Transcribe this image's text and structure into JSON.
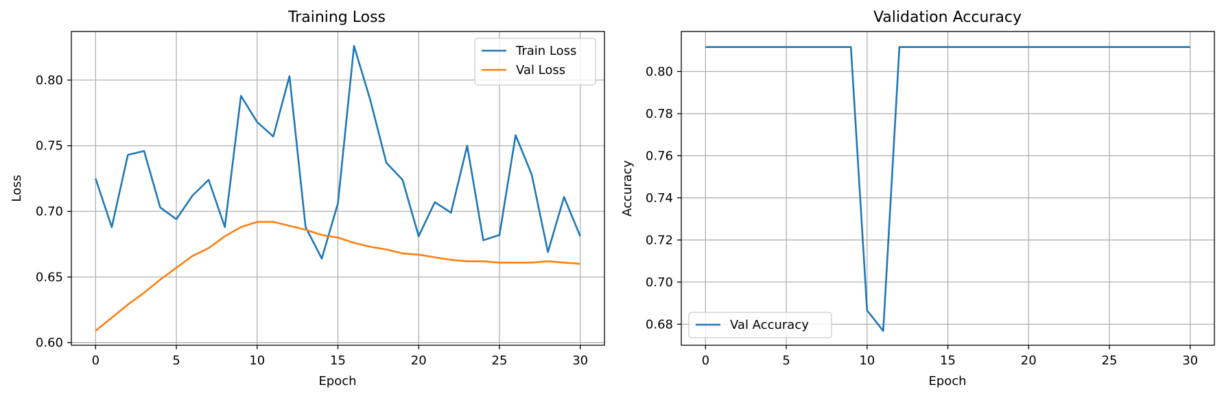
{
  "colors": {
    "blue": "#1f77b4",
    "orange": "#ff7f0e"
  },
  "chart_data": [
    {
      "type": "line",
      "title": "Training Loss",
      "xlabel": "Epoch",
      "ylabel": "Loss",
      "xlim": [
        -1.5,
        31.5
      ],
      "ylim": [
        0.598,
        0.837
      ],
      "xticks": [
        0,
        5,
        10,
        15,
        20,
        25,
        30
      ],
      "yticks": [
        0.6,
        0.65,
        0.7,
        0.75,
        0.8
      ],
      "xtick_labels": [
        "0",
        "5",
        "10",
        "15",
        "20",
        "25",
        "30"
      ],
      "ytick_labels": [
        "0.60",
        "0.65",
        "0.70",
        "0.75",
        "0.80"
      ],
      "grid": true,
      "legend_position": "upper-right",
      "x": [
        0,
        1,
        2,
        3,
        4,
        5,
        6,
        7,
        8,
        9,
        10,
        11,
        12,
        13,
        14,
        15,
        16,
        17,
        18,
        19,
        20,
        21,
        22,
        23,
        24,
        25,
        26,
        27,
        28,
        29,
        30
      ],
      "series": [
        {
          "name": "Train Loss",
          "color": "#1f77b4",
          "values": [
            0.725,
            0.688,
            0.743,
            0.746,
            0.703,
            0.694,
            0.712,
            0.724,
            0.688,
            0.788,
            0.768,
            0.757,
            0.803,
            0.688,
            0.664,
            0.706,
            0.826,
            0.785,
            0.737,
            0.724,
            0.681,
            0.707,
            0.699,
            0.75,
            0.678,
            0.682,
            0.758,
            0.728,
            0.669,
            0.711,
            0.681
          ]
        },
        {
          "name": "Val Loss",
          "color": "#ff7f0e",
          "values": [
            0.609,
            0.619,
            0.629,
            0.638,
            0.648,
            0.657,
            0.666,
            0.672,
            0.681,
            0.688,
            0.692,
            0.692,
            0.689,
            0.686,
            0.682,
            0.68,
            0.676,
            0.673,
            0.671,
            0.668,
            0.667,
            0.665,
            0.663,
            0.662,
            0.662,
            0.661,
            0.661,
            0.661,
            0.662,
            0.661,
            0.66
          ]
        }
      ]
    },
    {
      "type": "line",
      "title": "Validation Accuracy",
      "xlabel": "Epoch",
      "ylabel": "Accuracy",
      "xlim": [
        -1.5,
        31.5
      ],
      "ylim": [
        0.67,
        0.819
      ],
      "xticks": [
        0,
        5,
        10,
        15,
        20,
        25,
        30
      ],
      "yticks": [
        0.68,
        0.7,
        0.72,
        0.74,
        0.76,
        0.78,
        0.8
      ],
      "xtick_labels": [
        "0",
        "5",
        "10",
        "15",
        "20",
        "25",
        "30"
      ],
      "ytick_labels": [
        "0.68",
        "0.70",
        "0.72",
        "0.74",
        "0.76",
        "0.78",
        "0.80"
      ],
      "grid": true,
      "legend_position": "lower-left",
      "x": [
        0,
        1,
        2,
        3,
        4,
        5,
        6,
        7,
        8,
        9,
        10,
        11,
        12,
        13,
        14,
        15,
        16,
        17,
        18,
        19,
        20,
        21,
        22,
        23,
        24,
        25,
        26,
        27,
        28,
        29,
        30
      ],
      "series": [
        {
          "name": "Val Accuracy",
          "color": "#1f77b4",
          "values": [
            0.8116,
            0.8116,
            0.8116,
            0.8116,
            0.8116,
            0.8116,
            0.8116,
            0.8116,
            0.8116,
            0.8116,
            0.6866,
            0.6768,
            0.8116,
            0.8116,
            0.8116,
            0.8116,
            0.8116,
            0.8116,
            0.8116,
            0.8116,
            0.8116,
            0.8116,
            0.8116,
            0.8116,
            0.8116,
            0.8116,
            0.8116,
            0.8116,
            0.8116,
            0.8116,
            0.8116
          ]
        }
      ]
    }
  ]
}
